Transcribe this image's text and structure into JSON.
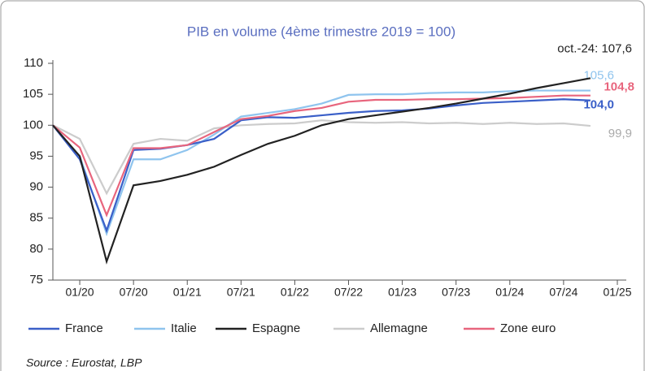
{
  "chart_data": {
    "type": "line",
    "title": "PIB en volume (4ème trimestre 2019 = 100)",
    "source": "Source : Eurostat, LBP",
    "x": [
      -3,
      0,
      3,
      6,
      9,
      12,
      15,
      18,
      21,
      24,
      27,
      30,
      33,
      36,
      39,
      42,
      45,
      48,
      51,
      54,
      57
    ],
    "xlim": [
      -3,
      61
    ],
    "xticks": [
      {
        "value": 0,
        "label": "01/20"
      },
      {
        "value": 6,
        "label": "07/20"
      },
      {
        "value": 12,
        "label": "01/21"
      },
      {
        "value": 18,
        "label": "07/21"
      },
      {
        "value": 24,
        "label": "01/22"
      },
      {
        "value": 30,
        "label": "07/22"
      },
      {
        "value": 36,
        "label": "01/23"
      },
      {
        "value": 42,
        "label": "07/23"
      },
      {
        "value": 48,
        "label": "01/24"
      },
      {
        "value": 54,
        "label": "07/24"
      },
      {
        "value": 60,
        "label": "01/25"
      }
    ],
    "ylim": [
      75,
      110
    ],
    "yticks": [
      75,
      80,
      85,
      90,
      95,
      100,
      105,
      110
    ],
    "series": [
      {
        "name": "France",
        "color": "#3a5fc8",
        "end_label": "104,0",
        "values": [
          100,
          94.5,
          83,
          96,
          96.2,
          96.8,
          97.8,
          100.8,
          101.3,
          101.2,
          101.6,
          102,
          102.3,
          102.4,
          102.7,
          103.2,
          103.6,
          103.8,
          104,
          104.2,
          104.0
        ]
      },
      {
        "name": "Italie",
        "color": "#8fc4ee",
        "end_label": "105,6",
        "values": [
          100,
          95,
          82.5,
          94.5,
          94.5,
          96,
          98.5,
          101.4,
          102,
          102.6,
          103.5,
          104.9,
          105,
          105,
          105.2,
          105.3,
          105.3,
          105.5,
          105.6,
          105.6,
          105.6
        ]
      },
      {
        "name": "Espagne",
        "color": "#222222",
        "end_label": "oct.-24: 107,6",
        "values": [
          100,
          95,
          78,
          90.3,
          91,
          92,
          93.3,
          95.2,
          97,
          98.3,
          100,
          101,
          101.6,
          102.2,
          102.8,
          103.5,
          104.3,
          105.1,
          106,
          106.8,
          107.6
        ]
      },
      {
        "name": "Allemagne",
        "color": "#cccccc",
        "end_label": "99,9",
        "values": [
          100,
          97.8,
          89,
          97,
          97.8,
          97.5,
          99.5,
          100,
          100.2,
          100.3,
          100.8,
          100.5,
          100.4,
          100.5,
          100.3,
          100.4,
          100.2,
          100.4,
          100.2,
          100.3,
          99.9
        ]
      },
      {
        "name": "Zone euro",
        "color": "#e8657d",
        "end_label": "104,8",
        "values": [
          100,
          96.4,
          85.5,
          96.3,
          96.3,
          96.8,
          98.9,
          101,
          101.5,
          102.3,
          102.8,
          103.8,
          104.1,
          104.1,
          104.2,
          104.2,
          104.3,
          104.4,
          104.6,
          104.8,
          104.8
        ]
      }
    ]
  }
}
